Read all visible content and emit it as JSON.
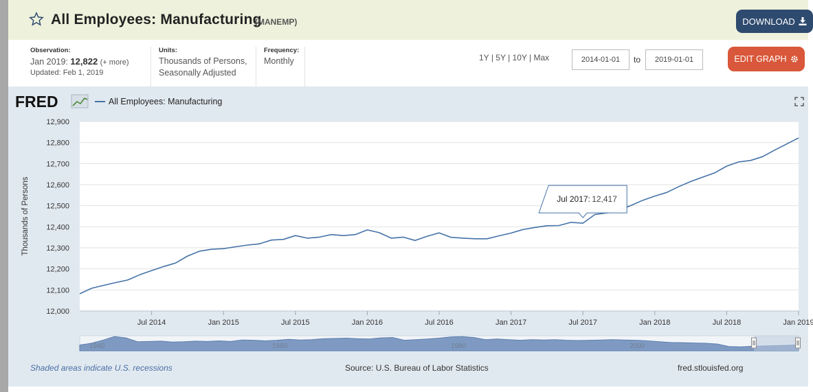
{
  "header": {
    "title": "All Employees: Manufacturing",
    "series_id": "(MANEMP)",
    "download_label": "DOWNLOAD"
  },
  "info": {
    "observation_label": "Observation:",
    "observation_date": "Jan 2019:",
    "observation_value": "12,822",
    "observation_more": "(+ more)",
    "updated": "Updated: Feb 1, 2019",
    "units_label": "Units:",
    "units_line1": "Thousands of Persons,",
    "units_line2": "Seasonally Adjusted",
    "frequency_label": "Frequency:",
    "frequency": "Monthly"
  },
  "controls": {
    "ranges": [
      "1Y",
      "5Y",
      "10Y",
      "Max"
    ],
    "start_date": "2014-01-01",
    "to_label": "to",
    "end_date": "2019-01-01",
    "edit_label": "EDIT GRAPH"
  },
  "footer": {
    "recession_note": "Shaded areas indicate U.S. recessions",
    "source": "Source: U.S. Bureau of Labor Statistics",
    "site": "fred.stlouisfed.org"
  },
  "colors": {
    "line": "#4572a7",
    "panel": "#e1e9f0",
    "title_bg": "#eef2dc",
    "download": "#2e4a6e",
    "edit": "#d9573a"
  },
  "chart_data": {
    "type": "line",
    "brand": "FRED",
    "legend": "All Employees: Manufacturing",
    "ylabel": "Thousands of Persons",
    "ylim": [
      12000,
      12900
    ],
    "yticks": [
      12000,
      12100,
      12200,
      12300,
      12400,
      12500,
      12600,
      12700,
      12800,
      12900
    ],
    "ytick_labels": [
      "12,000",
      "12,100",
      "12,200",
      "12,300",
      "12,400",
      "12,500",
      "12,600",
      "12,700",
      "12,800",
      "12,900"
    ],
    "xlim": [
      "2014-01",
      "2019-01"
    ],
    "xticks": [
      {
        "date": "2014-07",
        "label": "Jul 2014"
      },
      {
        "date": "2015-01",
        "label": "Jan 2015"
      },
      {
        "date": "2015-07",
        "label": "Jul 2015"
      },
      {
        "date": "2016-01",
        "label": "Jan 2016"
      },
      {
        "date": "2016-07",
        "label": "Jul 2016"
      },
      {
        "date": "2017-01",
        "label": "Jan 2017"
      },
      {
        "date": "2017-07",
        "label": "Jul 2017"
      },
      {
        "date": "2018-01",
        "label": "Jan 2018"
      },
      {
        "date": "2018-07",
        "label": "Jul 2018"
      },
      {
        "date": "2019-01",
        "label": "Jan 2019"
      }
    ],
    "series": [
      {
        "x": [
          "2014-01",
          "2014-02",
          "2014-03",
          "2014-04",
          "2014-05",
          "2014-06",
          "2014-07",
          "2014-08",
          "2014-09",
          "2014-10",
          "2014-11",
          "2014-12",
          "2015-01",
          "2015-02",
          "2015-03",
          "2015-04",
          "2015-05",
          "2015-06",
          "2015-07",
          "2015-08",
          "2015-09",
          "2015-10",
          "2015-11",
          "2015-12",
          "2016-01",
          "2016-02",
          "2016-03",
          "2016-04",
          "2016-05",
          "2016-06",
          "2016-07",
          "2016-08",
          "2016-09",
          "2016-10",
          "2016-11",
          "2016-12",
          "2017-01",
          "2017-02",
          "2017-03",
          "2017-04",
          "2017-05",
          "2017-06",
          "2017-07",
          "2017-08",
          "2017-09",
          "2017-10",
          "2017-11",
          "2017-12",
          "2018-01",
          "2018-02",
          "2018-03",
          "2018-04",
          "2018-05",
          "2018-06",
          "2018-07",
          "2018-08",
          "2018-09",
          "2018-10",
          "2018-11",
          "2018-12",
          "2019-01"
        ],
        "values": [
          12082,
          12108,
          12122,
          12135,
          12147,
          12172,
          12192,
          12211,
          12228,
          12261,
          12284,
          12293,
          12296,
          12305,
          12313,
          12319,
          12337,
          12340,
          12358,
          12346,
          12351,
          12363,
          12358,
          12363,
          12385,
          12372,
          12346,
          12351,
          12335,
          12355,
          12371,
          12350,
          12346,
          12343,
          12343,
          12357,
          12370,
          12387,
          12397,
          12405,
          12406,
          12421,
          12417,
          12458,
          12466,
          12478,
          12501,
          12526,
          12546,
          12563,
          12591,
          12615,
          12636,
          12656,
          12688,
          12708,
          12715,
          12733,
          12764,
          12793,
          12822
        ]
      }
    ],
    "tooltip": {
      "label": "Jul 2017:",
      "value": "12,417",
      "date": "2017-07"
    },
    "navigator": {
      "labels": [
        "1940",
        "1960",
        "1980",
        "2000"
      ],
      "values": [
        0.38,
        0.5,
        0.7,
        0.95,
        0.85,
        0.6,
        0.62,
        0.64,
        0.58,
        0.6,
        0.64,
        0.62,
        0.66,
        0.62,
        0.72,
        0.7,
        0.66,
        0.7,
        0.76,
        0.72,
        0.74,
        0.8,
        0.82,
        0.84,
        0.8,
        0.78,
        0.86,
        0.88,
        0.7,
        0.74,
        0.78,
        0.84,
        0.92,
        0.94,
        0.88,
        0.74,
        0.78,
        0.74,
        0.7,
        0.74,
        0.72,
        0.74,
        0.7,
        0.68,
        0.7,
        0.72,
        0.74,
        0.72,
        0.7,
        0.66,
        0.6,
        0.55,
        0.54,
        0.52,
        0.5,
        0.45,
        0.28,
        0.26,
        0.3,
        0.32,
        0.34,
        0.36,
        0.4
      ]
    }
  }
}
